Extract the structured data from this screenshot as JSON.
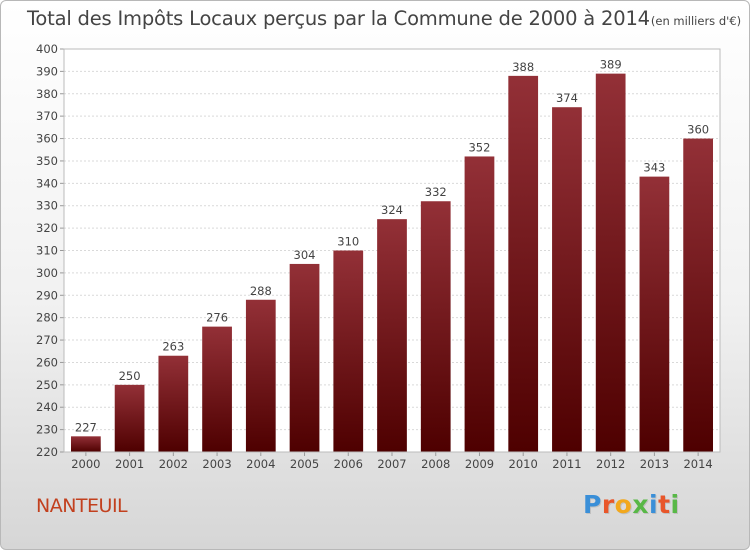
{
  "header": {
    "title": "Total des Impôts Locaux perçus par la Commune de 2000 à 2014",
    "subtitle": "(en milliers d'€)"
  },
  "footer": {
    "commune": "NANTEUIL",
    "logo_letters": [
      "P",
      "r",
      "o",
      "x",
      "i",
      "t",
      "i"
    ],
    "logo_colors": [
      "#3a8fd8",
      "#e8562a",
      "#f2a81d",
      "#58b847",
      "#3a8fd8",
      "#e8562a",
      "#58b847"
    ]
  },
  "chart_data": {
    "type": "bar",
    "categories": [
      "2000",
      "2001",
      "2002",
      "2003",
      "2004",
      "2005",
      "2006",
      "2007",
      "2008",
      "2009",
      "2010",
      "2011",
      "2012",
      "2013",
      "2014"
    ],
    "values": [
      227,
      250,
      263,
      276,
      288,
      304,
      310,
      324,
      332,
      352,
      388,
      374,
      389,
      343,
      360
    ],
    "ylim": [
      220,
      400
    ],
    "yticks": [
      220,
      230,
      240,
      250,
      260,
      270,
      280,
      290,
      300,
      310,
      320,
      330,
      340,
      350,
      360,
      370,
      380,
      390,
      400
    ],
    "grid": true,
    "bar_color": "#7a1e22",
    "xlabel": "",
    "ylabel": ""
  }
}
